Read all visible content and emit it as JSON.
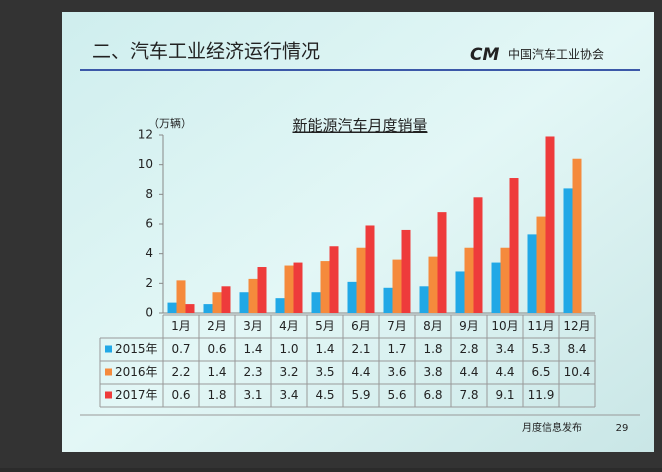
{
  "slide": {
    "heading": "二、汽车工业经济运行情况",
    "logo": "中国汽车工业协会",
    "footer": "月度信息发布",
    "page_number": "29"
  },
  "chart_data": {
    "type": "bar",
    "title": "新能源汽车月度销量",
    "y_unit": "（万辆）",
    "categories": [
      "1月",
      "2月",
      "3月",
      "4月",
      "5月",
      "6月",
      "7月",
      "8月",
      "9月",
      "10月",
      "11月",
      "12月"
    ],
    "series": [
      {
        "name": "2015年",
        "color": "#21a8e6",
        "values": [
          0.7,
          0.6,
          1.4,
          1.0,
          1.4,
          2.1,
          1.7,
          1.8,
          2.8,
          3.4,
          5.3,
          8.4
        ],
        "value_labels": [
          "0.7",
          "0.6",
          "1.4",
          "1.0",
          "1.4",
          "2.1",
          "1.7",
          "1.8",
          "2.8",
          "3.4",
          "5.3",
          "8.4"
        ]
      },
      {
        "name": "2016年",
        "color": "#f58a3c",
        "values": [
          2.2,
          1.4,
          2.3,
          3.2,
          3.5,
          4.4,
          3.6,
          3.8,
          4.4,
          4.4,
          6.5,
          10.4
        ]
      },
      {
        "name": "2017年",
        "color": "#ee3b3b",
        "values": [
          0.6,
          1.8,
          3.1,
          3.4,
          4.5,
          5.9,
          5.6,
          6.8,
          7.8,
          9.1,
          11.9,
          null
        ]
      }
    ],
    "ylim": [
      0,
      12
    ],
    "yticks": [
      0,
      2,
      4,
      6,
      8,
      10,
      12
    ],
    "grid": false
  }
}
